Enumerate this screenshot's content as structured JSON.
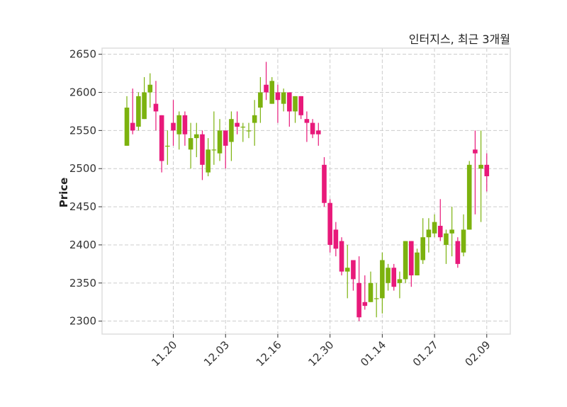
{
  "chart_data": {
    "type": "candlestick",
    "title": "인터지스, 최근 3개월",
    "ylabel": "Price",
    "xlabel": "",
    "ylim": [
      2283,
      2658
    ],
    "yticks": [
      2300,
      2350,
      2400,
      2450,
      2500,
      2550,
      2600,
      2650
    ],
    "xticks": [
      {
        "index": 8,
        "label": "11.20"
      },
      {
        "index": 17,
        "label": "12.03"
      },
      {
        "index": 26,
        "label": "12.16"
      },
      {
        "index": 35,
        "label": "12.30"
      },
      {
        "index": 44,
        "label": "01.14"
      },
      {
        "index": 53,
        "label": "01.27"
      },
      {
        "index": 62,
        "label": "02.09"
      }
    ],
    "grid": true,
    "colors": {
      "up": "#7cb20e",
      "down": "#e8197a"
    },
    "ohlc_fields": [
      "open",
      "high",
      "low",
      "close"
    ],
    "candles": [
      [
        2530,
        2595,
        2530,
        2580
      ],
      [
        2560,
        2605,
        2545,
        2550
      ],
      [
        2555,
        2600,
        2550,
        2595
      ],
      [
        2565,
        2620,
        2565,
        2600
      ],
      [
        2600,
        2625,
        2580,
        2610
      ],
      [
        2585,
        2615,
        2550,
        2575
      ],
      [
        2570,
        2570,
        2495,
        2510
      ],
      [
        2530,
        2550,
        2505,
        2530
      ],
      [
        2560,
        2590,
        2530,
        2550
      ],
      [
        2545,
        2575,
        2525,
        2570
      ],
      [
        2570,
        2575,
        2530,
        2545
      ],
      [
        2525,
        2560,
        2500,
        2540
      ],
      [
        2540,
        2560,
        2515,
        2545
      ],
      [
        2545,
        2550,
        2485,
        2505
      ],
      [
        2495,
        2540,
        2490,
        2525
      ],
      [
        2525,
        2575,
        2505,
        2525
      ],
      [
        2520,
        2565,
        2510,
        2550
      ],
      [
        2550,
        2550,
        2500,
        2530
      ],
      [
        2535,
        2575,
        2510,
        2565
      ],
      [
        2560,
        2575,
        2545,
        2555
      ],
      [
        2555,
        2560,
        2535,
        2555
      ],
      [
        2550,
        2560,
        2540,
        2550
      ],
      [
        2560,
        2590,
        2530,
        2570
      ],
      [
        2580,
        2620,
        2560,
        2600
      ],
      [
        2610,
        2640,
        2590,
        2600
      ],
      [
        2585,
        2620,
        2585,
        2615
      ],
      [
        2600,
        2610,
        2560,
        2590
      ],
      [
        2585,
        2605,
        2575,
        2600
      ],
      [
        2600,
        2600,
        2555,
        2575
      ],
      [
        2575,
        2595,
        2560,
        2595
      ],
      [
        2595,
        2595,
        2565,
        2570
      ],
      [
        2565,
        2575,
        2535,
        2560
      ],
      [
        2560,
        2565,
        2540,
        2545
      ],
      [
        2550,
        2560,
        2530,
        2545
      ],
      [
        2505,
        2515,
        2450,
        2455
      ],
      [
        2455,
        2460,
        2390,
        2400
      ],
      [
        2420,
        2430,
        2385,
        2395
      ],
      [
        2405,
        2410,
        2360,
        2365
      ],
      [
        2365,
        2400,
        2330,
        2370
      ],
      [
        2380,
        2380,
        2340,
        2355
      ],
      [
        2350,
        2385,
        2300,
        2305
      ],
      [
        2325,
        2360,
        2315,
        2320
      ],
      [
        2325,
        2365,
        2325,
        2350
      ],
      [
        2330,
        2350,
        2305,
        2330
      ],
      [
        2330,
        2390,
        2310,
        2380
      ],
      [
        2350,
        2375,
        2340,
        2370
      ],
      [
        2370,
        2375,
        2340,
        2345
      ],
      [
        2350,
        2365,
        2330,
        2355
      ],
      [
        2355,
        2405,
        2350,
        2405
      ],
      [
        2405,
        2405,
        2345,
        2360
      ],
      [
        2360,
        2395,
        2360,
        2390
      ],
      [
        2380,
        2435,
        2375,
        2410
      ],
      [
        2410,
        2435,
        2390,
        2420
      ],
      [
        2415,
        2440,
        2410,
        2430
      ],
      [
        2425,
        2460,
        2405,
        2410
      ],
      [
        2400,
        2420,
        2375,
        2415
      ],
      [
        2415,
        2450,
        2385,
        2420
      ],
      [
        2405,
        2410,
        2370,
        2375
      ],
      [
        2390,
        2440,
        2385,
        2420
      ],
      [
        2420,
        2510,
        2420,
        2505
      ],
      [
        2525,
        2550,
        2440,
        2520
      ],
      [
        2500,
        2550,
        2430,
        2505
      ],
      [
        2505,
        2520,
        2470,
        2490
      ]
    ]
  }
}
